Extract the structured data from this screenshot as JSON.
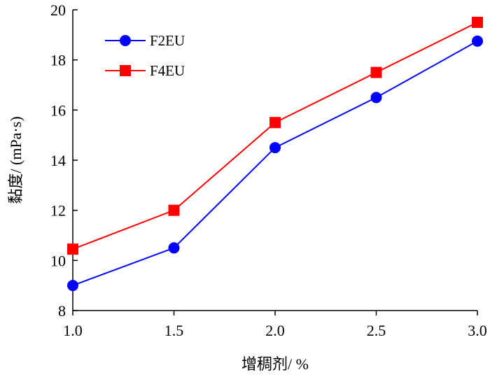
{
  "chart_data": {
    "type": "line",
    "title": "",
    "xlabel": "增稠剂/ %",
    "ylabel": "黏度/ (mPa·s)",
    "x": [
      1.0,
      1.5,
      2.0,
      2.5,
      3.0
    ],
    "x_tick_labels": [
      "1.0",
      "1.5",
      "2.0",
      "2.5",
      "3.0"
    ],
    "y_tick_labels": [
      "8",
      "10",
      "12",
      "14",
      "16",
      "18",
      "20"
    ],
    "xlim": [
      1.0,
      3.0
    ],
    "ylim": [
      8,
      20
    ],
    "y_ticks": [
      8,
      10,
      12,
      14,
      16,
      18,
      20
    ],
    "grid": false,
    "legend_position": "top-left",
    "series": [
      {
        "name": "F2EU",
        "values": [
          9.0,
          10.5,
          14.5,
          16.5,
          18.75
        ],
        "color": "#0000ff",
        "marker": "circle"
      },
      {
        "name": "F4EU",
        "values": [
          10.45,
          12.0,
          15.5,
          17.5,
          19.5
        ],
        "color": "#ff0000",
        "marker": "square"
      }
    ]
  }
}
